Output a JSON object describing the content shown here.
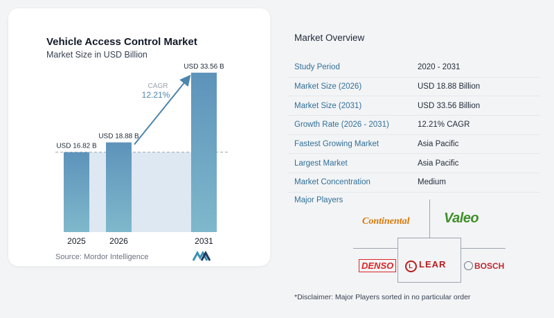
{
  "chart_data": {
    "type": "bar",
    "title": "Vehicle Access Control Market",
    "subtitle": "Market Size in USD Billion",
    "categories": [
      "2025",
      "2026",
      "2031"
    ],
    "values": [
      16.82,
      18.88,
      33.56
    ],
    "data_labels": [
      "USD 16.82 B",
      "USD 18.88 B",
      "USD 33.56 B"
    ],
    "annotation": {
      "label": "CAGR",
      "value": "12.21%"
    },
    "ylim": [
      0,
      35
    ],
    "grid": false,
    "colors": {
      "bar_top": "#5e93ba",
      "bar_bottom": "#7fb8cc",
      "shade": "#dde8f2",
      "arrow": "#4d86ad"
    }
  },
  "source": "Source:  Mordor Intelligence",
  "overview": {
    "title": "Market Overview",
    "rows": [
      {
        "label": "Study Period",
        "value": "2020 - 2031"
      },
      {
        "label": "Market Size (2026)",
        "value": "USD 18.88 Billion"
      },
      {
        "label": "Market Size (2031)",
        "value": "USD 33.56 Billion"
      },
      {
        "label": "Growth Rate (2026 - 2031)",
        "value": "12.21% CAGR"
      },
      {
        "label": "Fastest Growing Market",
        "value": "Asia Pacific"
      },
      {
        "label": "Largest Market",
        "value": "Asia Pacific"
      },
      {
        "label": "Market Concentration",
        "value": "Medium"
      }
    ]
  },
  "players": {
    "title": "Major Players",
    "logos": [
      "Continental",
      "Valeo",
      "DENSO",
      "LEAR",
      "BOSCH"
    ]
  },
  "disclaimer": "*Disclaimer: Major Players sorted in no particular order"
}
